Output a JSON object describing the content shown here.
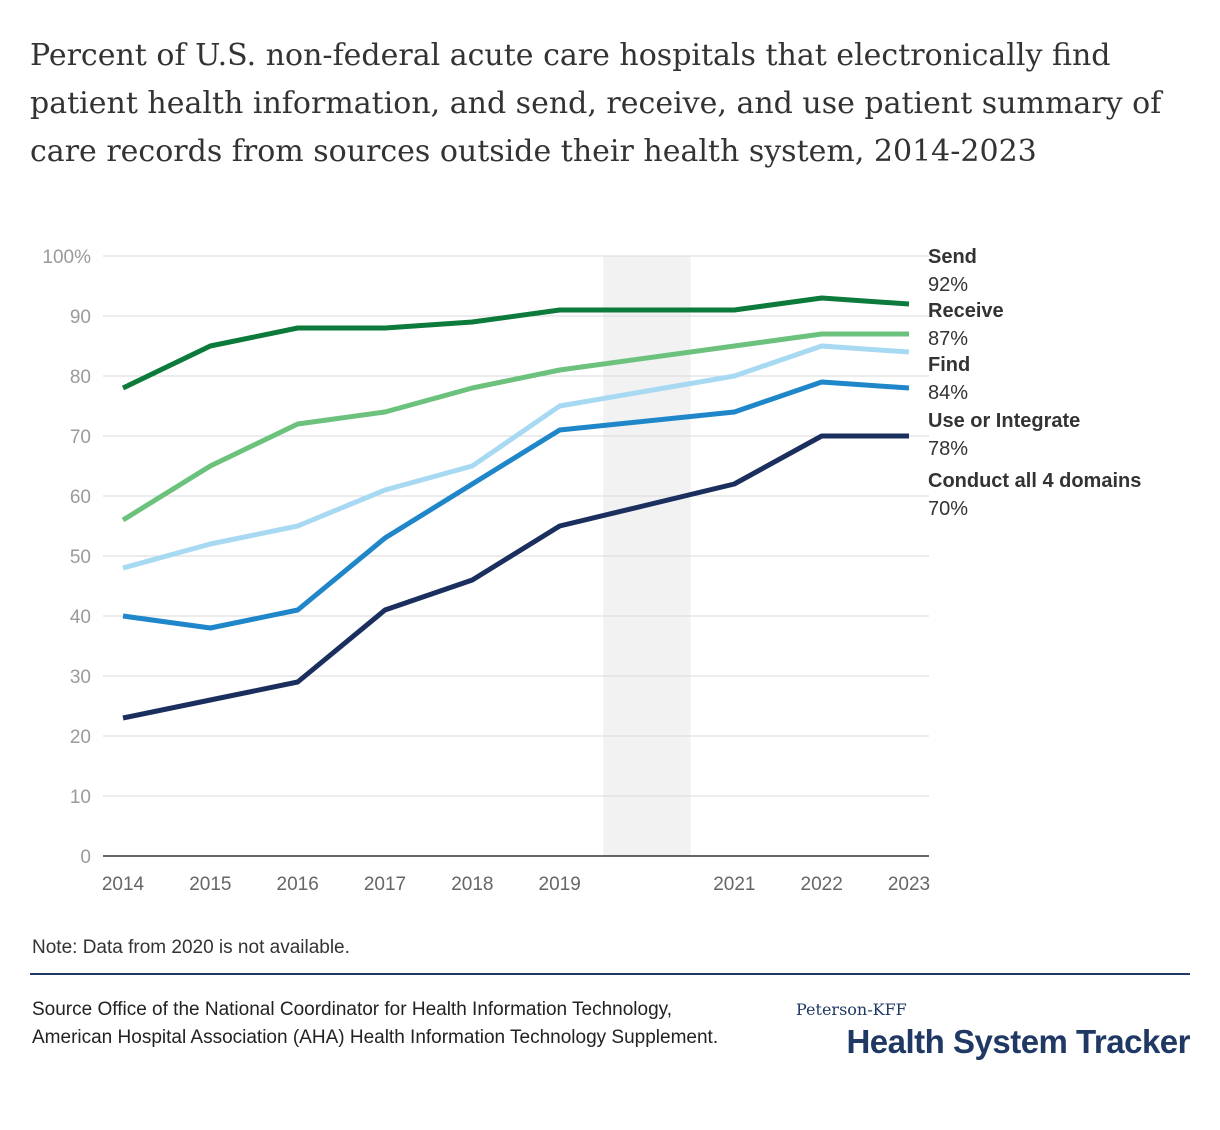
{
  "title": "Percent of U.S. non-federal acute care hospitals that electronically find patient health information, and send, receive, and use patient summary of care records from sources outside their health system, 2014-2023",
  "note": "Note: Data from 2020 is not available.",
  "source": "Source Office of the National Coordinator for Health Information Technology, American Hospital Association (AHA) Health Information Technology Supplement.",
  "brand": {
    "top": "Peterson-KFF",
    "main": "Health System Tracker"
  },
  "colors": {
    "send": "#0b7a3b",
    "receive": "#6cc27d",
    "find": "#a8d9f2",
    "use": "#1f87c9",
    "all4": "#1b2f5e",
    "grid": "#d9d9d9",
    "tick": "#9a9a9a",
    "shade": "#f2f2f2"
  },
  "chart_data": {
    "type": "line",
    "x": [
      2014,
      2015,
      2016,
      2017,
      2018,
      2019,
      2020,
      2021,
      2022,
      2023
    ],
    "x_tick_labels": [
      "2014",
      "2015",
      "2016",
      "2017",
      "2018",
      "2019",
      "",
      "2021",
      "2022",
      "2023"
    ],
    "y_tick_labels": [
      "0",
      "10",
      "20",
      "30",
      "40",
      "50",
      "60",
      "70",
      "80",
      "90",
      "100%"
    ],
    "ylim": [
      0,
      100
    ],
    "grid": true,
    "shaded_region": {
      "x_from": 2019.5,
      "x_to": 2020.5
    },
    "series": [
      {
        "name": "Send",
        "end_label": "92%",
        "color_key": "send",
        "values": [
          78,
          85,
          88,
          88,
          89,
          91,
          null,
          91,
          93,
          92
        ]
      },
      {
        "name": "Receive",
        "end_label": "87%",
        "color_key": "receive",
        "values": [
          56,
          65,
          72,
          74,
          78,
          81,
          null,
          85,
          87,
          87
        ]
      },
      {
        "name": "Find",
        "end_label": "84%",
        "color_key": "find",
        "values": [
          48,
          52,
          55,
          61,
          65,
          75,
          null,
          80,
          85,
          84
        ]
      },
      {
        "name": "Use or Integrate",
        "end_label": "78%",
        "color_key": "use",
        "values": [
          40,
          38,
          41,
          53,
          62,
          71,
          null,
          74,
          79,
          78
        ]
      },
      {
        "name": "Conduct all 4 domains",
        "end_label": "70%",
        "color_key": "all4",
        "values": [
          23,
          26,
          29,
          41,
          46,
          55,
          null,
          62,
          70,
          70
        ]
      }
    ]
  }
}
